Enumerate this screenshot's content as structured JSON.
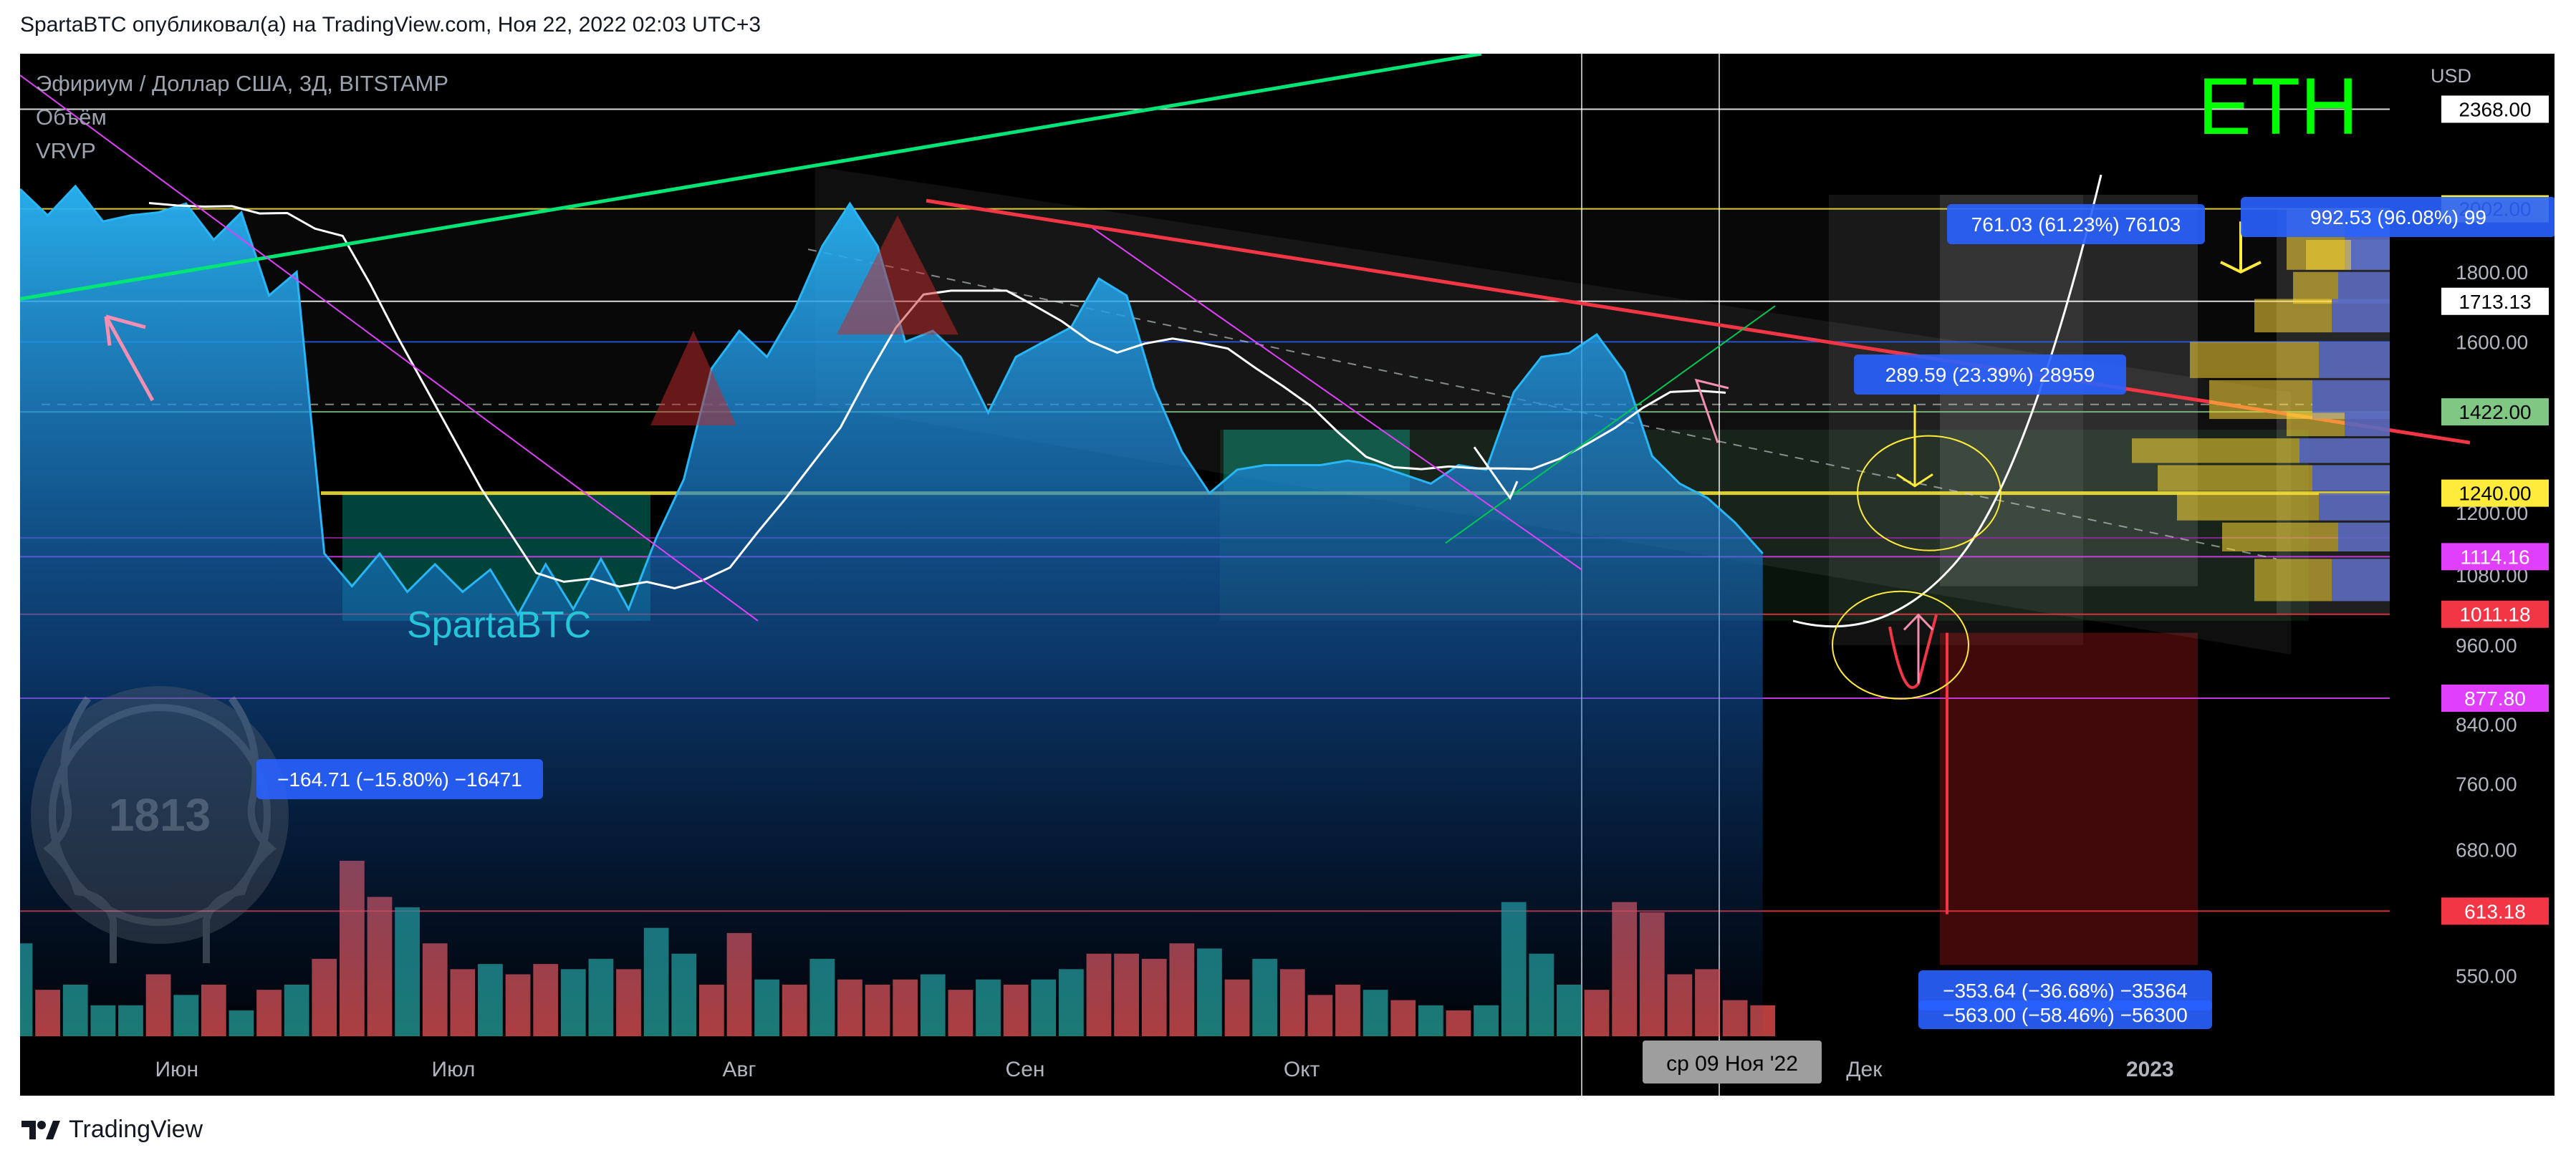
{
  "header": {
    "published": "SpartaBTC опубликовал(а) на TradingView.com, Ноя 22, 2022 02:03 UTC+3"
  },
  "footer": {
    "brand": "TradingView"
  },
  "legend": {
    "symbol": "Эфириум / Доллар США, 3Д, BITSTAMP",
    "volume": "Объём",
    "vrvp": "VRVP"
  },
  "overlays": {
    "eth_label": "ETH",
    "author_watermark": "SpartaBTC",
    "logo_watermark": "1813",
    "crosshair_date": "ср 09 Ноя '22"
  },
  "colors": {
    "background": "#000000",
    "bull": "#26a69a",
    "bear": "#ef5350",
    "accent_green": "#00ff00",
    "accent_red": "#f23645",
    "accent_yellow": "#ffeb3b",
    "measure_blue": "#2962ff"
  },
  "measure_labels": [
    {
      "text": "761.03 (61.23%) 76103"
    },
    {
      "text": "992.53 (96.08%) 99"
    },
    {
      "text": "289.59 (23.39%) 28959"
    },
    {
      "text": "−164.71 (−15.80%) −16471"
    },
    {
      "text": "−353.64 (−36.68%) −35364"
    },
    {
      "text": "−563.00 (−58.46%) −56300"
    }
  ],
  "chart_data": {
    "type": "area",
    "title": "Эфириум / Доллар США, 3Д, BITSTAMP",
    "currency": "USD",
    "y_scale": "log",
    "ylim": [
      510,
      2600
    ],
    "xlim": [
      "2022-05-15",
      "2023-01-27"
    ],
    "x_ticks": [
      {
        "date": "2022-06-01",
        "label": "Июн"
      },
      {
        "date": "2022-07-01",
        "label": "Июл"
      },
      {
        "date": "2022-08-01",
        "label": "Авг"
      },
      {
        "date": "2022-09-01",
        "label": "Сен"
      },
      {
        "date": "2022-10-01",
        "label": "Окт"
      },
      {
        "date": "2022-12-01",
        "label": "Дек"
      },
      {
        "date": "2023-01-01",
        "label": "2023"
      }
    ],
    "y_ticks": [
      1800,
      1600,
      1200,
      1080,
      960,
      840,
      760,
      680,
      550
    ],
    "highlighted_levels": [
      {
        "value": 2368.0,
        "label": "2368.00",
        "color": "#ffffff"
      },
      {
        "value": 2002.0,
        "label": "2002.00",
        "color": "#ffeb3b"
      },
      {
        "value": 1713.13,
        "label": "1713.13",
        "color": "#ffffff"
      },
      {
        "value": 1422.0,
        "label": "1422.00",
        "color": "#81c784"
      },
      {
        "value": 1240.0,
        "label": "1240.00",
        "color": "#ffeb3b"
      },
      {
        "value": 1114.16,
        "label": "1114.16",
        "color": "#e040fb"
      },
      {
        "value": 1011.18,
        "label": "1011.18",
        "color": "#f23645"
      },
      {
        "value": 877.8,
        "label": "877.80",
        "color": "#e040fb"
      },
      {
        "value": 613.18,
        "label": "613.18",
        "color": "#f23645"
      }
    ],
    "price_series": {
      "name": "ETH/USD 3D close",
      "x": [
        "2022-05-15",
        "2022-05-18",
        "2022-05-21",
        "2022-05-24",
        "2022-05-27",
        "2022-05-30",
        "2022-06-02",
        "2022-06-05",
        "2022-06-08",
        "2022-06-11",
        "2022-06-14",
        "2022-06-17",
        "2022-06-20",
        "2022-06-23",
        "2022-06-26",
        "2022-06-29",
        "2022-07-02",
        "2022-07-05",
        "2022-07-08",
        "2022-07-11",
        "2022-07-14",
        "2022-07-17",
        "2022-07-20",
        "2022-07-23",
        "2022-07-26",
        "2022-07-29",
        "2022-08-01",
        "2022-08-04",
        "2022-08-07",
        "2022-08-10",
        "2022-08-13",
        "2022-08-16",
        "2022-08-19",
        "2022-08-22",
        "2022-08-25",
        "2022-08-28",
        "2022-08-31",
        "2022-09-03",
        "2022-09-06",
        "2022-09-09",
        "2022-09-12",
        "2022-09-15",
        "2022-09-18",
        "2022-09-21",
        "2022-09-24",
        "2022-09-27",
        "2022-09-30",
        "2022-10-03",
        "2022-10-06",
        "2022-10-09",
        "2022-10-12",
        "2022-10-15",
        "2022-10-18",
        "2022-10-21",
        "2022-10-24",
        "2022-10-27",
        "2022-10-30",
        "2022-11-02",
        "2022-11-05",
        "2022-11-08",
        "2022-11-11",
        "2022-11-14",
        "2022-11-17",
        "2022-11-20"
      ],
      "close": [
        2070,
        1980,
        2080,
        1960,
        1980,
        1990,
        2020,
        1900,
        1990,
        1730,
        1800,
        1120,
        1060,
        1120,
        1050,
        1100,
        1050,
        1090,
        1010,
        1100,
        1020,
        1110,
        1020,
        1150,
        1270,
        1530,
        1630,
        1560,
        1690,
        1880,
        2020,
        1880,
        1600,
        1630,
        1560,
        1420,
        1560,
        1600,
        1640,
        1780,
        1730,
        1480,
        1330,
        1240,
        1290,
        1300,
        1300,
        1300,
        1310,
        1300,
        1280,
        1260,
        1300,
        1290,
        1470,
        1560,
        1570,
        1620,
        1520,
        1320,
        1260,
        1230,
        1180,
        1120
      ]
    },
    "volume_series": {
      "name": "Объём",
      "values": [
        1.8,
        0.9,
        1.0,
        0.6,
        0.6,
        1.2,
        0.8,
        1.0,
        0.5,
        0.9,
        1.0,
        1.5,
        3.4,
        2.7,
        2.5,
        1.8,
        1.3,
        1.4,
        1.2,
        1.4,
        1.3,
        1.5,
        1.3,
        2.1,
        1.6,
        1.0,
        2.0,
        1.1,
        1.0,
        1.5,
        1.1,
        1.0,
        1.1,
        1.2,
        0.9,
        1.1,
        1.0,
        1.1,
        1.3,
        1.6,
        1.6,
        1.5,
        1.8,
        1.7,
        1.1,
        1.5,
        1.3,
        0.8,
        1.0,
        0.9,
        0.7,
        0.6,
        0.5,
        0.6,
        2.6,
        1.6,
        1.0,
        0.9,
        2.6,
        2.4,
        1.2,
        1.3,
        0.7,
        0.6
      ],
      "direction": [
        "u",
        "d",
        "u",
        "u",
        "u",
        "d",
        "u",
        "d",
        "u",
        "d",
        "u",
        "d",
        "d",
        "d",
        "u",
        "d",
        "d",
        "u",
        "d",
        "d",
        "u",
        "u",
        "d",
        "u",
        "u",
        "d",
        "d",
        "u",
        "d",
        "u",
        "d",
        "d",
        "d",
        "u",
        "d",
        "u",
        "d",
        "u",
        "u",
        "d",
        "d",
        "d",
        "d",
        "u",
        "d",
        "u",
        "d",
        "d",
        "d",
        "u",
        "d",
        "u",
        "d",
        "u",
        "u",
        "u",
        "u",
        "d",
        "d",
        "d",
        "d",
        "d",
        "d",
        "d"
      ]
    }
  }
}
